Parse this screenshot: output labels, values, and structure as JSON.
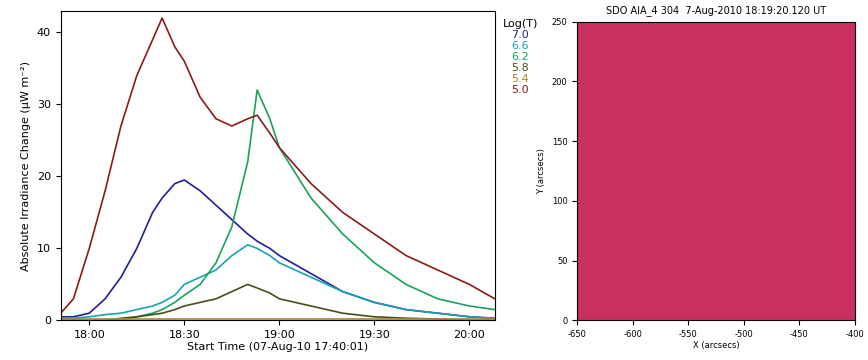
{
  "chart_data": [
    {
      "type": "line",
      "x_label": "Start Time (07-Aug-10 17:40:01)",
      "y_label": "Absolute Irradiance Change (μW m⁻²)",
      "legend_title": "Log(T)",
      "legend": "right",
      "x": [
        1071,
        1075,
        1080,
        1085,
        1090,
        1095,
        1100,
        1103,
        1107,
        1110,
        1115,
        1120,
        1125,
        1130,
        1133,
        1137,
        1140,
        1150,
        1160,
        1170,
        1180,
        1190,
        1200,
        1208
      ],
      "xlim": [
        1071,
        1208
      ],
      "xticks": [
        {
          "value": 1080,
          "label": "18:00"
        },
        {
          "value": 1110,
          "label": "18:30"
        },
        {
          "value": 1140,
          "label": "19:00"
        },
        {
          "value": 1170,
          "label": "19:30"
        },
        {
          "value": 1200,
          "label": "20:00"
        }
      ],
      "ylim": [
        0,
        43
      ],
      "yticks": [
        0,
        10,
        20,
        30,
        40
      ],
      "series": [
        {
          "name": "7.0",
          "color": "#1f1f9e",
          "values": [
            0.5,
            0.5,
            1,
            3,
            6,
            10,
            15,
            17,
            19,
            19.5,
            18,
            16,
            14,
            12,
            11,
            10,
            9,
            6.5,
            4,
            2.5,
            1.5,
            1,
            0.5,
            0.3
          ]
        },
        {
          "name": "6.6",
          "color": "#17a3b3",
          "values": [
            0.3,
            0.3,
            0.5,
            0.8,
            1,
            1.5,
            2,
            2.5,
            3.5,
            5,
            6,
            7,
            9,
            10.5,
            10,
            9,
            8,
            6,
            4,
            2.5,
            1.5,
            1,
            0.5,
            0.3
          ]
        },
        {
          "name": "6.2",
          "color": "#17a35a",
          "values": [
            0,
            0,
            0,
            0,
            0,
            0.5,
            1,
            1.5,
            2.5,
            3.5,
            5,
            8,
            13,
            22,
            32,
            28,
            24,
            17,
            12,
            8,
            5,
            3,
            2,
            1.5
          ]
        },
        {
          "name": "5.8",
          "color": "#4d4d1a",
          "values": [
            0,
            0,
            0,
            0,
            0.3,
            0.5,
            0.8,
            1,
            1.5,
            2,
            2.5,
            3,
            4,
            5,
            4.5,
            3.8,
            3,
            2,
            1,
            0.5,
            0.3,
            0.2,
            0,
            0
          ]
        },
        {
          "name": "5.4",
          "color": "#a68a2a",
          "values": [
            0.2,
            0.2,
            0.2,
            0.2,
            0.2,
            0.2,
            0.2,
            0.2,
            0.2,
            0.2,
            0.2,
            0.2,
            0.2,
            0.2,
            0.2,
            0.2,
            0.2,
            0.2,
            0.2,
            0.2,
            0.2,
            0.2,
            0.2,
            0.2
          ]
        },
        {
          "name": "5.0",
          "color": "#8b1a1a",
          "values": [
            1,
            3,
            10,
            18,
            27,
            34,
            39,
            42,
            38,
            36,
            31,
            28,
            27,
            28,
            28.5,
            26,
            24,
            19,
            15,
            12,
            9,
            7,
            5,
            3
          ]
        }
      ]
    },
    {
      "type": "image",
      "title": "SDO AIA_4 304  7-Aug-2010 18:19:20.120 UT",
      "x_label": "X (arcsecs)",
      "y_label": "Y (arcsecs)",
      "xlim": [
        -650,
        -400
      ],
      "xticks": [
        -650,
        -600,
        -550,
        -500,
        -450,
        -400
      ],
      "ylim": [
        0,
        250
      ],
      "yticks": [
        0,
        50,
        100,
        150,
        200,
        250
      ],
      "color": "#c8305f"
    }
  ]
}
